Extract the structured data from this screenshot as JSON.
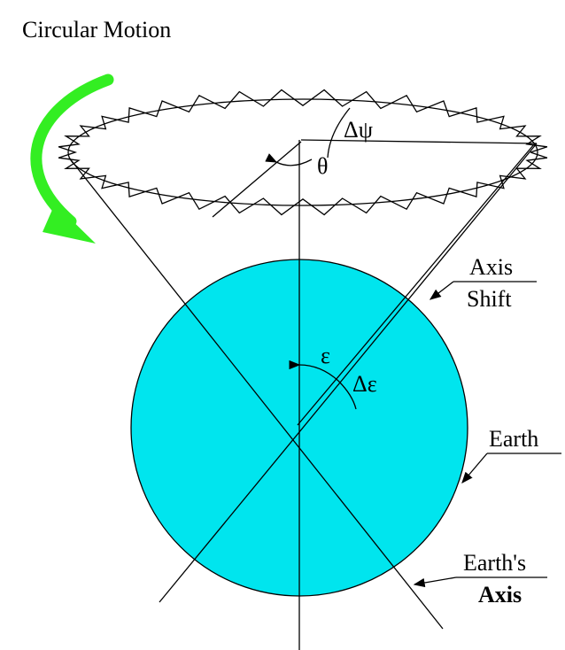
{
  "title": "Circular Motion",
  "labels": {
    "delta_psi": "Δψ",
    "theta": "θ",
    "epsilon": "ε",
    "delta_epsilon": "Δε",
    "axis_shift": [
      "Axis",
      "Shift"
    ],
    "earth": "Earth",
    "earths_axis": [
      "Earth's",
      "Axis"
    ]
  }
}
